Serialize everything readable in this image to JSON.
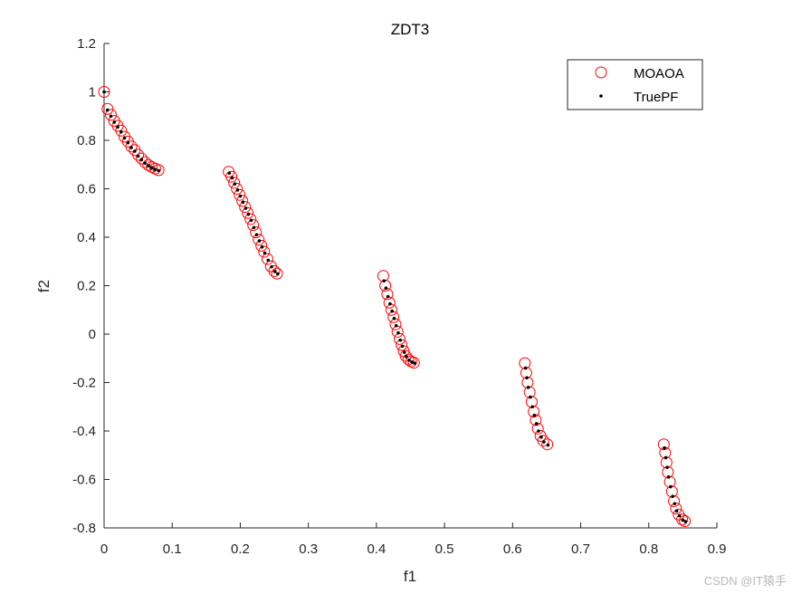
{
  "chart_data": {
    "type": "scatter",
    "title": "ZDT3",
    "xlabel": "f1",
    "ylabel": "f2",
    "xlim": [
      0,
      0.9
    ],
    "ylim": [
      -0.8,
      1.2
    ],
    "xticks": [
      "0",
      "0.1",
      "0.2",
      "0.3",
      "0.4",
      "0.5",
      "0.6",
      "0.7",
      "0.8",
      "0.9"
    ],
    "yticks": [
      "-0.8",
      "-0.6",
      "-0.4",
      "-0.2",
      "0",
      "0.2",
      "0.4",
      "0.6",
      "0.8",
      "1",
      "1.2"
    ],
    "grid": false,
    "legend_position": "top-right",
    "series": [
      {
        "name": "MOAOA",
        "marker": "open-circle",
        "color": "#ff0000",
        "points": [
          [
            0.0,
            1.0
          ],
          [
            0.005,
            0.93
          ],
          [
            0.01,
            0.905
          ],
          [
            0.015,
            0.88
          ],
          [
            0.02,
            0.86
          ],
          [
            0.025,
            0.84
          ],
          [
            0.03,
            0.815
          ],
          [
            0.035,
            0.795
          ],
          [
            0.04,
            0.775
          ],
          [
            0.045,
            0.76
          ],
          [
            0.05,
            0.74
          ],
          [
            0.055,
            0.725
          ],
          [
            0.06,
            0.71
          ],
          [
            0.065,
            0.698
          ],
          [
            0.07,
            0.69
          ],
          [
            0.075,
            0.683
          ],
          [
            0.08,
            0.677
          ],
          [
            0.183,
            0.67
          ],
          [
            0.187,
            0.65
          ],
          [
            0.191,
            0.625
          ],
          [
            0.195,
            0.6
          ],
          [
            0.199,
            0.575
          ],
          [
            0.203,
            0.55
          ],
          [
            0.207,
            0.525
          ],
          [
            0.211,
            0.5
          ],
          [
            0.215,
            0.475
          ],
          [
            0.219,
            0.45
          ],
          [
            0.223,
            0.42
          ],
          [
            0.227,
            0.39
          ],
          [
            0.231,
            0.365
          ],
          [
            0.235,
            0.34
          ],
          [
            0.24,
            0.31
          ],
          [
            0.245,
            0.28
          ],
          [
            0.25,
            0.26
          ],
          [
            0.254,
            0.25
          ],
          [
            0.41,
            0.24
          ],
          [
            0.413,
            0.2
          ],
          [
            0.416,
            0.165
          ],
          [
            0.419,
            0.13
          ],
          [
            0.422,
            0.1
          ],
          [
            0.425,
            0.07
          ],
          [
            0.428,
            0.04
          ],
          [
            0.431,
            0.01
          ],
          [
            0.434,
            -0.02
          ],
          [
            0.437,
            -0.045
          ],
          [
            0.44,
            -0.07
          ],
          [
            0.443,
            -0.09
          ],
          [
            0.447,
            -0.105
          ],
          [
            0.451,
            -0.113
          ],
          [
            0.455,
            -0.118
          ],
          [
            0.618,
            -0.12
          ],
          [
            0.62,
            -0.16
          ],
          [
            0.622,
            -0.2
          ],
          [
            0.625,
            -0.24
          ],
          [
            0.628,
            -0.28
          ],
          [
            0.631,
            -0.32
          ],
          [
            0.634,
            -0.355
          ],
          [
            0.637,
            -0.39
          ],
          [
            0.641,
            -0.42
          ],
          [
            0.645,
            -0.44
          ],
          [
            0.651,
            -0.455
          ],
          [
            0.822,
            -0.455
          ],
          [
            0.824,
            -0.49
          ],
          [
            0.826,
            -0.53
          ],
          [
            0.828,
            -0.57
          ],
          [
            0.831,
            -0.61
          ],
          [
            0.834,
            -0.65
          ],
          [
            0.837,
            -0.69
          ],
          [
            0.84,
            -0.72
          ],
          [
            0.844,
            -0.745
          ],
          [
            0.849,
            -0.765
          ],
          [
            0.853,
            -0.772
          ]
        ]
      },
      {
        "name": "TruePF",
        "marker": "dot",
        "color": "#000000",
        "points": [
          [
            0.0,
            1.0
          ],
          [
            0.005,
            0.925
          ],
          [
            0.01,
            0.9
          ],
          [
            0.015,
            0.875
          ],
          [
            0.02,
            0.855
          ],
          [
            0.025,
            0.835
          ],
          [
            0.03,
            0.81
          ],
          [
            0.035,
            0.79
          ],
          [
            0.04,
            0.77
          ],
          [
            0.045,
            0.755
          ],
          [
            0.05,
            0.735
          ],
          [
            0.055,
            0.72
          ],
          [
            0.06,
            0.706
          ],
          [
            0.065,
            0.695
          ],
          [
            0.07,
            0.687
          ],
          [
            0.075,
            0.68
          ],
          [
            0.08,
            0.675
          ],
          [
            0.184,
            0.665
          ],
          [
            0.188,
            0.645
          ],
          [
            0.192,
            0.62
          ],
          [
            0.196,
            0.595
          ],
          [
            0.2,
            0.57
          ],
          [
            0.204,
            0.545
          ],
          [
            0.208,
            0.52
          ],
          [
            0.212,
            0.495
          ],
          [
            0.216,
            0.47
          ],
          [
            0.22,
            0.44
          ],
          [
            0.224,
            0.41
          ],
          [
            0.228,
            0.385
          ],
          [
            0.232,
            0.36
          ],
          [
            0.236,
            0.335
          ],
          [
            0.241,
            0.305
          ],
          [
            0.246,
            0.278
          ],
          [
            0.251,
            0.258
          ],
          [
            0.255,
            0.249
          ],
          [
            0.411,
            0.22
          ],
          [
            0.414,
            0.19
          ],
          [
            0.417,
            0.155
          ],
          [
            0.42,
            0.125
          ],
          [
            0.423,
            0.095
          ],
          [
            0.426,
            0.065
          ],
          [
            0.429,
            0.035
          ],
          [
            0.432,
            0.005
          ],
          [
            0.435,
            -0.025
          ],
          [
            0.438,
            -0.05
          ],
          [
            0.441,
            -0.075
          ],
          [
            0.444,
            -0.093
          ],
          [
            0.448,
            -0.107
          ],
          [
            0.452,
            -0.115
          ],
          [
            0.456,
            -0.12
          ],
          [
            0.619,
            -0.14
          ],
          [
            0.621,
            -0.18
          ],
          [
            0.623,
            -0.22
          ],
          [
            0.626,
            -0.26
          ],
          [
            0.629,
            -0.3
          ],
          [
            0.632,
            -0.335
          ],
          [
            0.635,
            -0.37
          ],
          [
            0.638,
            -0.4
          ],
          [
            0.642,
            -0.425
          ],
          [
            0.646,
            -0.445
          ],
          [
            0.652,
            -0.458
          ],
          [
            0.823,
            -0.47
          ],
          [
            0.825,
            -0.51
          ],
          [
            0.827,
            -0.55
          ],
          [
            0.829,
            -0.59
          ],
          [
            0.832,
            -0.63
          ],
          [
            0.835,
            -0.67
          ],
          [
            0.838,
            -0.7
          ],
          [
            0.841,
            -0.73
          ],
          [
            0.845,
            -0.75
          ],
          [
            0.85,
            -0.768
          ],
          [
            0.854,
            -0.774
          ]
        ]
      }
    ]
  },
  "watermark": "CSDN @IT猿手"
}
